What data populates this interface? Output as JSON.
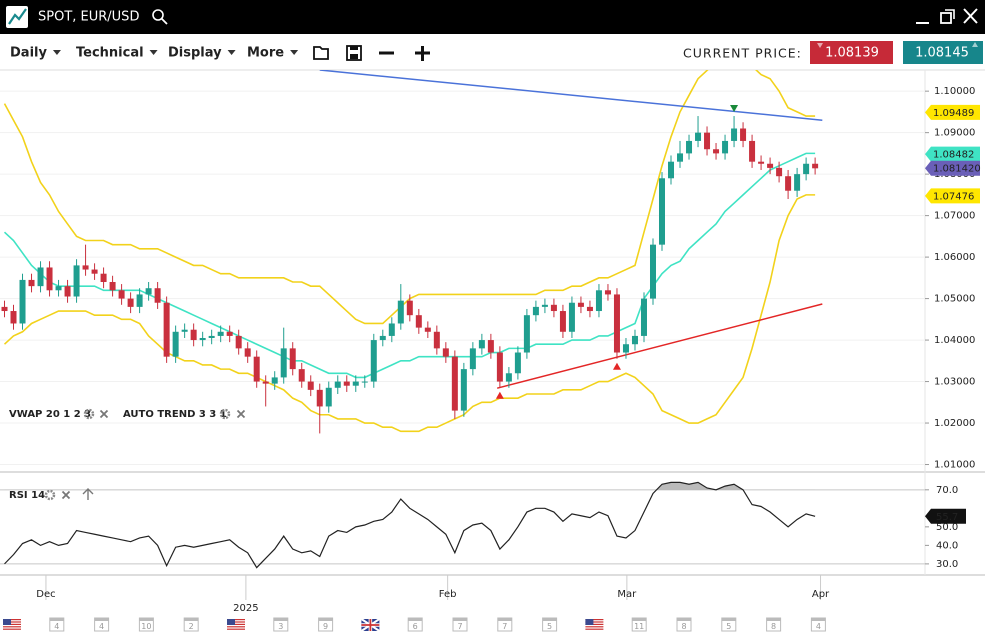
{
  "header": {
    "title": "SPOT, EUR/USD"
  },
  "toolbar": {
    "menus": [
      "Daily",
      "Technical",
      "Display",
      "More"
    ],
    "current_price_label": "CURRENT PRICE:",
    "bid": "1.08139",
    "ask": "1.08145"
  },
  "chart_data": [
    {
      "type": "candlestick",
      "indicator_labels": [
        "VWAP 20 1 2 3",
        "AUTO TREND 3 3 1"
      ],
      "up_color": "#1f9e8f",
      "down_color": "#c9303e",
      "xlim": [
        -0.5,
        102.2
      ],
      "xticks": [
        {
          "value": 4.6,
          "label": "Dec"
        },
        {
          "value": 26.8,
          "label": "2025"
        },
        {
          "value": 49.2,
          "label": "Feb"
        },
        {
          "value": 69.1,
          "label": "Mar"
        },
        {
          "value": 90.6,
          "label": "Apr"
        }
      ],
      "ylim": [
        1.0082,
        1.1051
      ],
      "yticks": [
        {
          "value": 1.1,
          "label": "1.10000"
        },
        {
          "value": 1.09,
          "label": "1.09000"
        },
        {
          "value": 1.08,
          "label": "1.08000"
        },
        {
          "value": 1.07,
          "label": "1.07000"
        },
        {
          "value": 1.06,
          "label": "1.06000"
        },
        {
          "value": 1.05,
          "label": "1.05000"
        },
        {
          "value": 1.04,
          "label": "1.04000"
        },
        {
          "value": 1.03,
          "label": "1.03000"
        },
        {
          "value": 1.02,
          "label": "1.02000"
        },
        {
          "value": 1.01,
          "label": "1.01000"
        }
      ],
      "grid": true,
      "open": [
        1.048,
        1.047,
        1.044,
        1.0545,
        1.053,
        1.0575,
        1.052,
        1.053,
        1.0505,
        1.058,
        1.057,
        1.056,
        1.054,
        1.052,
        1.05,
        1.048,
        1.051,
        1.0525,
        1.049,
        1.036,
        1.042,
        1.0425,
        1.04,
        1.0405,
        1.041,
        1.042,
        1.041,
        1.038,
        1.036,
        1.03,
        1.0295,
        1.031,
        1.038,
        1.033,
        1.03,
        1.028,
        1.024,
        1.0285,
        1.03,
        1.029,
        1.03,
        1.03,
        1.04,
        1.041,
        1.044,
        1.0495,
        1.046,
        1.043,
        1.042,
        1.038,
        1.036,
        1.023,
        1.033,
        1.038,
        1.04,
        1.037,
        1.03,
        1.032,
        1.037,
        1.046,
        1.048,
        1.0485,
        1.047,
        1.042,
        1.049,
        1.048,
        1.047,
        1.052,
        1.051,
        1.037,
        1.039,
        1.041,
        1.05,
        1.063,
        1.079,
        1.083,
        1.085,
        1.088,
        1.09,
        1.086,
        1.085,
        1.088,
        1.091,
        1.088,
        1.083,
        1.0825,
        1.0815,
        1.0795,
        1.076,
        1.08,
        1.0825
      ],
      "high": [
        1.0495,
        1.0485,
        1.056,
        1.056,
        1.059,
        1.059,
        1.0545,
        1.0545,
        1.0595,
        1.063,
        1.0585,
        1.0575,
        1.0555,
        1.0535,
        1.0515,
        1.0525,
        1.054,
        1.054,
        1.0505,
        1.0435,
        1.044,
        1.044,
        1.042,
        1.0425,
        1.0435,
        1.0435,
        1.0425,
        1.0395,
        1.0375,
        1.0315,
        1.0325,
        1.043,
        1.0395,
        1.0345,
        1.0315,
        1.0295,
        1.03,
        1.0315,
        1.0315,
        1.0315,
        1.0315,
        1.0415,
        1.0425,
        1.0455,
        1.0535,
        1.051,
        1.0475,
        1.0445,
        1.0435,
        1.0395,
        1.0375,
        1.0345,
        1.0395,
        1.0415,
        1.0415,
        1.0385,
        1.0335,
        1.0385,
        1.0475,
        1.0495,
        1.05,
        1.05,
        1.0485,
        1.0505,
        1.0505,
        1.0495,
        1.0535,
        1.0535,
        1.0525,
        1.0405,
        1.0425,
        1.0515,
        1.0645,
        1.0805,
        1.0845,
        1.088,
        1.0895,
        1.094,
        1.0915,
        1.0875,
        1.0895,
        1.094,
        1.0925,
        1.0895,
        1.0845,
        1.084,
        1.083,
        1.081,
        1.0815,
        1.084,
        1.084
      ],
      "low": [
        1.0455,
        1.0425,
        1.0425,
        1.0515,
        1.0515,
        1.0505,
        1.0505,
        1.049,
        1.049,
        1.0555,
        1.0545,
        1.0525,
        1.0505,
        1.0485,
        1.0465,
        1.0465,
        1.0495,
        1.0475,
        1.0345,
        1.0345,
        1.0405,
        1.0385,
        1.0385,
        1.039,
        1.0395,
        1.0395,
        1.0365,
        1.0345,
        1.0285,
        1.024,
        1.028,
        1.0295,
        1.0315,
        1.0285,
        1.0265,
        1.0175,
        1.0225,
        1.027,
        1.0275,
        1.0275,
        1.0285,
        1.0285,
        1.0385,
        1.0395,
        1.0425,
        1.0445,
        1.0415,
        1.0405,
        1.0365,
        1.0345,
        1.021,
        1.0215,
        1.0315,
        1.0365,
        1.0355,
        1.0285,
        1.0285,
        1.0305,
        1.0355,
        1.0445,
        1.0465,
        1.0455,
        1.0405,
        1.0405,
        1.0465,
        1.0455,
        1.0455,
        1.0495,
        1.0355,
        1.0355,
        1.0375,
        1.0395,
        1.0485,
        1.0615,
        1.0775,
        1.0815,
        1.0835,
        1.0865,
        1.0845,
        1.0835,
        1.0835,
        1.0865,
        1.0865,
        1.0815,
        1.081,
        1.08,
        1.078,
        1.074,
        1.0745,
        1.0785,
        1.0799
      ],
      "close": [
        1.047,
        1.044,
        1.0545,
        1.053,
        1.0575,
        1.052,
        1.053,
        1.0505,
        1.058,
        1.057,
        1.056,
        1.054,
        1.052,
        1.05,
        1.048,
        1.051,
        1.0525,
        1.049,
        1.036,
        1.042,
        1.0425,
        1.04,
        1.0405,
        1.041,
        1.042,
        1.041,
        1.038,
        1.036,
        1.03,
        1.0295,
        1.031,
        1.038,
        1.033,
        1.03,
        1.028,
        1.024,
        1.0285,
        1.03,
        1.029,
        1.03,
        1.03,
        1.04,
        1.041,
        1.044,
        1.0495,
        1.046,
        1.043,
        1.042,
        1.038,
        1.036,
        1.023,
        1.033,
        1.038,
        1.04,
        1.037,
        1.03,
        1.032,
        1.037,
        1.046,
        1.048,
        1.0485,
        1.047,
        1.042,
        1.049,
        1.048,
        1.047,
        1.052,
        1.051,
        1.037,
        1.039,
        1.041,
        1.05,
        1.063,
        1.079,
        1.083,
        1.085,
        1.088,
        1.09,
        1.086,
        1.085,
        1.088,
        1.091,
        1.088,
        1.083,
        1.0825,
        1.0815,
        1.0795,
        1.076,
        1.08,
        1.0825,
        1.0814
      ],
      "overlays": [
        {
          "color": "#3fe3c4",
          "values": [
            1.066,
            1.064,
            1.061,
            1.058,
            1.056,
            1.054,
            1.053,
            1.053,
            1.053,
            1.053,
            1.053,
            1.052,
            1.052,
            1.052,
            1.052,
            1.052,
            1.051,
            1.05,
            1.049,
            1.048,
            1.047,
            1.046,
            1.045,
            1.044,
            1.043,
            1.042,
            1.041,
            1.04,
            1.039,
            1.038,
            1.037,
            1.036,
            1.035,
            1.035,
            1.034,
            1.033,
            1.032,
            1.032,
            1.032,
            1.031,
            1.031,
            1.032,
            1.033,
            1.034,
            1.035,
            1.035,
            1.036,
            1.036,
            1.036,
            1.036,
            1.036,
            1.036,
            1.036,
            1.036,
            1.037,
            1.037,
            1.038,
            1.038,
            1.038,
            1.039,
            1.039,
            1.039,
            1.039,
            1.04,
            1.04,
            1.04,
            1.041,
            1.041,
            1.042,
            1.043,
            1.044,
            1.05,
            1.053,
            1.056,
            1.058,
            1.059,
            1.062,
            1.064,
            1.066,
            1.068,
            1.071,
            1.073,
            1.075,
            1.077,
            1.079,
            1.081,
            1.082,
            1.083,
            1.084,
            1.085,
            1.085
          ]
        },
        {
          "color": "#f2d21b",
          "values": [
            1.097,
            1.093,
            1.089,
            1.083,
            1.078,
            1.075,
            1.071,
            1.068,
            1.065,
            1.064,
            1.064,
            1.064,
            1.063,
            1.063,
            1.063,
            1.062,
            1.062,
            1.062,
            1.061,
            1.06,
            1.059,
            1.058,
            1.058,
            1.057,
            1.056,
            1.056,
            1.055,
            1.055,
            1.055,
            1.055,
            1.055,
            1.055,
            1.054,
            1.054,
            1.053,
            1.053,
            1.051,
            1.049,
            1.047,
            1.045,
            1.044,
            1.044,
            1.044,
            1.046,
            1.048,
            1.05,
            1.051,
            1.051,
            1.051,
            1.051,
            1.051,
            1.051,
            1.051,
            1.051,
            1.051,
            1.051,
            1.051,
            1.051,
            1.051,
            1.051,
            1.052,
            1.052,
            1.052,
            1.053,
            1.053,
            1.054,
            1.055,
            1.055,
            1.056,
            1.057,
            1.058,
            1.066,
            1.074,
            1.082,
            1.089,
            1.095,
            1.099,
            1.103,
            1.105,
            1.107,
            1.107,
            1.107,
            1.107,
            1.106,
            1.104,
            1.103,
            1.1,
            1.096,
            1.095,
            1.094,
            1.094
          ]
        },
        {
          "color": "#f2d21b",
          "values": [
            1.039,
            1.041,
            1.042,
            1.044,
            1.045,
            1.046,
            1.047,
            1.047,
            1.047,
            1.047,
            1.046,
            1.046,
            1.046,
            1.045,
            1.045,
            1.044,
            1.041,
            1.039,
            1.037,
            1.036,
            1.035,
            1.035,
            1.034,
            1.034,
            1.033,
            1.033,
            1.032,
            1.032,
            1.031,
            1.03,
            1.029,
            1.028,
            1.026,
            1.025,
            1.023,
            1.022,
            1.022,
            1.021,
            1.021,
            1.021,
            1.02,
            1.02,
            1.019,
            1.019,
            1.018,
            1.018,
            1.018,
            1.019,
            1.019,
            1.02,
            1.021,
            1.022,
            1.024,
            1.025,
            1.025,
            1.026,
            1.026,
            1.026,
            1.027,
            1.027,
            1.027,
            1.027,
            1.028,
            1.028,
            1.028,
            1.029,
            1.03,
            1.03,
            1.031,
            1.032,
            1.031,
            1.029,
            1.027,
            1.023,
            1.022,
            1.021,
            1.02,
            1.02,
            1.021,
            1.022,
            1.025,
            1.028,
            1.031,
            1.038,
            1.046,
            1.054,
            1.064,
            1.07,
            1.074,
            1.075,
            1.075
          ]
        }
      ],
      "trendlines": [
        {
          "color": "#4a72d9",
          "points": [
            [
              35,
              1.1051
            ],
            [
              90.8,
              1.093
            ]
          ]
        },
        {
          "color": "#e32626",
          "points": [
            [
              54.7,
              1.0284
            ],
            [
              90.8,
              1.0487
            ]
          ]
        }
      ],
      "signals": [
        {
          "index": 81,
          "direction": "down",
          "color": "#1a8a3a"
        },
        {
          "index": 55,
          "direction": "up",
          "color": "#e32626"
        },
        {
          "index": 68,
          "direction": "up",
          "color": "#e32626"
        }
      ],
      "price_tags": [
        {
          "value": 1.09489,
          "color": "#ffe600",
          "text_color": "#000000"
        },
        {
          "value": 1.08482,
          "color": "#3fe3c4",
          "text_color": "#000000"
        },
        {
          "value": 1.08142,
          "label": "1.081420",
          "color": "#6a5fb8",
          "text_color": "#ffffff"
        },
        {
          "value": 1.07476,
          "color": "#ffe600",
          "text_color": "#000000"
        }
      ]
    },
    {
      "type": "line",
      "label": "RSI 14",
      "color": "#222222",
      "ylim": [
        24,
        78
      ],
      "yticks": [
        {
          "value": 70,
          "label": "70.0"
        },
        {
          "value": 50,
          "label": "50.0"
        },
        {
          "value": 40,
          "label": "40.0"
        },
        {
          "value": 30,
          "label": "30.0"
        }
      ],
      "levels": [
        70,
        30
      ],
      "values": [
        30,
        35,
        41,
        43,
        40,
        42,
        40,
        41,
        48,
        47,
        46,
        45,
        44,
        43,
        42,
        44,
        45,
        40,
        29,
        39,
        40,
        39,
        40,
        41,
        42,
        43,
        39,
        36,
        28,
        33,
        38,
        45,
        38,
        36,
        37,
        34,
        45,
        48,
        47,
        50,
        51,
        53,
        54,
        58,
        65,
        60,
        57,
        54,
        50,
        46,
        36,
        48,
        51,
        52,
        48,
        38,
        43,
        50,
        58,
        60,
        60,
        58,
        53,
        57,
        56,
        55,
        58,
        56,
        45,
        44,
        48,
        58,
        68,
        73,
        74,
        74,
        73,
        74,
        71,
        70,
        72,
        73,
        70,
        62,
        61,
        58,
        54,
        50,
        54,
        57,
        55.7
      ],
      "last_tag": 55.7
    }
  ],
  "events": [
    {
      "type": "flag-us"
    },
    {
      "type": "calendar",
      "label": "4"
    },
    {
      "type": "calendar",
      "label": "4"
    },
    {
      "type": "calendar",
      "label": "10"
    },
    {
      "type": "calendar",
      "label": "2"
    },
    {
      "type": "flag-us"
    },
    {
      "type": "calendar",
      "label": "3"
    },
    {
      "type": "calendar",
      "label": "9"
    },
    {
      "type": "flag-uk"
    },
    {
      "type": "calendar",
      "label": "6"
    },
    {
      "type": "calendar",
      "label": "7"
    },
    {
      "type": "calendar",
      "label": "7"
    },
    {
      "type": "calendar",
      "label": "5"
    },
    {
      "type": "flag-us"
    },
    {
      "type": "calendar",
      "label": "11"
    },
    {
      "type": "calendar",
      "label": "8"
    },
    {
      "type": "calendar",
      "label": "5"
    },
    {
      "type": "calendar",
      "label": "8"
    },
    {
      "type": "calendar",
      "label": "4"
    }
  ]
}
